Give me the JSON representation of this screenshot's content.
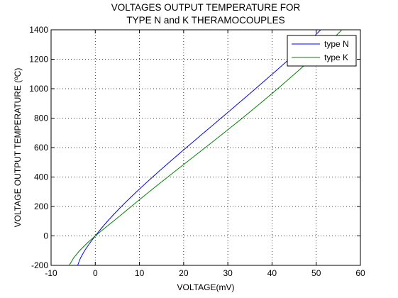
{
  "chart_data": {
    "type": "line",
    "title_line1": "VOLTAGES OUTPUT TEMPERATURE FOR",
    "title_line2": "TYPE N and K THERAMOCOUPLES",
    "xlabel": "VOLTAGE(mV)",
    "ylabel": "VOLTAGE OUTPUT TEMPERATURE (ºC)",
    "xlim": [
      -10,
      60
    ],
    "ylim": [
      -200,
      1400
    ],
    "xticks": [
      -10,
      0,
      10,
      20,
      30,
      40,
      50,
      60
    ],
    "yticks": [
      -200,
      0,
      200,
      400,
      600,
      800,
      1000,
      1200,
      1400
    ],
    "grid": true,
    "legend_position": "top-right",
    "series": [
      {
        "name": "type N",
        "color": "#0000ff",
        "points": [
          [
            -3.99,
            -200
          ],
          [
            -3.34,
            -150
          ],
          [
            -2.41,
            -100
          ],
          [
            -1.27,
            -50
          ],
          [
            0.0,
            0
          ],
          [
            1.34,
            50
          ],
          [
            2.77,
            100
          ],
          [
            4.3,
            150
          ],
          [
            5.91,
            200
          ],
          [
            7.6,
            250
          ],
          [
            9.34,
            300
          ],
          [
            11.14,
            350
          ],
          [
            12.97,
            400
          ],
          [
            14.84,
            450
          ],
          [
            16.75,
            500
          ],
          [
            18.67,
            550
          ],
          [
            20.61,
            600
          ],
          [
            22.58,
            650
          ],
          [
            24.53,
            700
          ],
          [
            26.51,
            750
          ],
          [
            28.46,
            800
          ],
          [
            30.44,
            850
          ],
          [
            32.37,
            900
          ],
          [
            34.34,
            950
          ],
          [
            36.26,
            1000
          ],
          [
            38.18,
            1050
          ],
          [
            40.09,
            1100
          ],
          [
            41.99,
            1150
          ],
          [
            43.85,
            1200
          ],
          [
            45.71,
            1250
          ],
          [
            47.51,
            1300
          ],
          [
            49.31,
            1350
          ],
          [
            51.05,
            1400
          ]
        ]
      },
      {
        "name": "type K",
        "color": "#008000",
        "points": [
          [
            -5.89,
            -200
          ],
          [
            -4.91,
            -150
          ],
          [
            -3.55,
            -100
          ],
          [
            -1.89,
            -50
          ],
          [
            0.0,
            0
          ],
          [
            2.02,
            50
          ],
          [
            4.1,
            100
          ],
          [
            6.14,
            150
          ],
          [
            8.14,
            200
          ],
          [
            10.15,
            250
          ],
          [
            12.21,
            300
          ],
          [
            14.29,
            350
          ],
          [
            16.4,
            400
          ],
          [
            18.52,
            450
          ],
          [
            20.64,
            500
          ],
          [
            22.77,
            550
          ],
          [
            24.9,
            600
          ],
          [
            27.02,
            650
          ],
          [
            29.13,
            700
          ],
          [
            31.21,
            750
          ],
          [
            33.28,
            800
          ],
          [
            35.31,
            850
          ],
          [
            37.33,
            900
          ],
          [
            39.31,
            950
          ],
          [
            41.28,
            1000
          ],
          [
            43.21,
            1050
          ],
          [
            45.12,
            1100
          ],
          [
            47.0,
            1150
          ],
          [
            48.84,
            1200
          ],
          [
            50.64,
            1250
          ],
          [
            52.41,
            1300
          ],
          [
            54.14,
            1350
          ],
          [
            55.82,
            1400
          ]
        ]
      }
    ]
  }
}
